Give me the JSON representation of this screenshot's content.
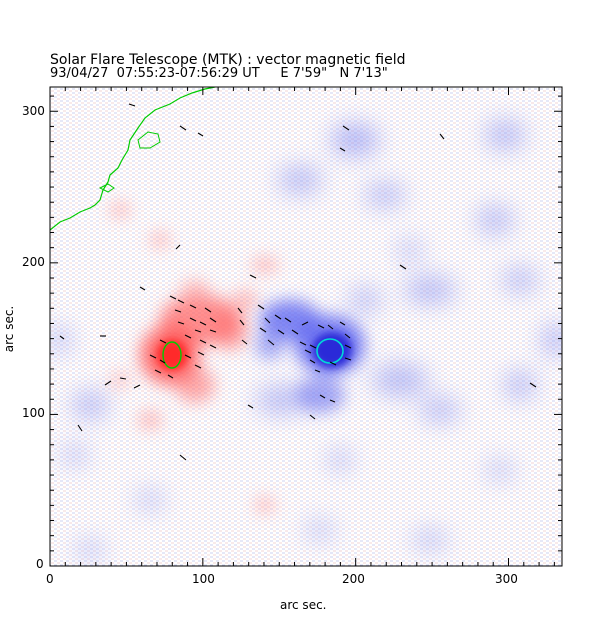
{
  "header": {
    "title": "Solar Flare Telescope (MTK) : vector magnetic field",
    "subtitle": "93/04/27  07:55:23-07:56:29 UT     E 7'59\"   N 7'13\""
  },
  "axes": {
    "x_label": "arc sec.",
    "y_label": "arc sec.",
    "x_ticks": [
      "0",
      "100",
      "200",
      "300"
    ],
    "y_ticks": [
      "0",
      "100",
      "200",
      "300"
    ]
  },
  "chart_data": {
    "type": "heatmap",
    "title": "Solar Flare Telescope (MTK) : vector magnetic field",
    "xlabel": "arc sec.",
    "ylabel": "arc sec.",
    "xlim": [
      0,
      335
    ],
    "ylim": [
      0,
      315
    ],
    "x_ticks": [
      0,
      100,
      200,
      300
    ],
    "y_ticks": [
      0,
      100,
      200,
      300
    ],
    "colors": {
      "positive_polarity": "#ff3b3b",
      "negative_polarity": "#3b3bff",
      "contour_green": "#00cc00",
      "contour_cyan": "#00d8d8"
    },
    "spots": [
      {
        "polarity": "positive",
        "x": 82,
        "y": 138,
        "strength": 1.0
      },
      {
        "polarity": "positive",
        "x": 105,
        "y": 165,
        "strength": 0.7
      },
      {
        "polarity": "negative",
        "x": 185,
        "y": 140,
        "strength": 1.0
      },
      {
        "polarity": "negative",
        "x": 150,
        "y": 158,
        "strength": 0.55
      },
      {
        "polarity": "negative",
        "x": 345,
        "y": 150,
        "strength": 0.3
      }
    ]
  }
}
